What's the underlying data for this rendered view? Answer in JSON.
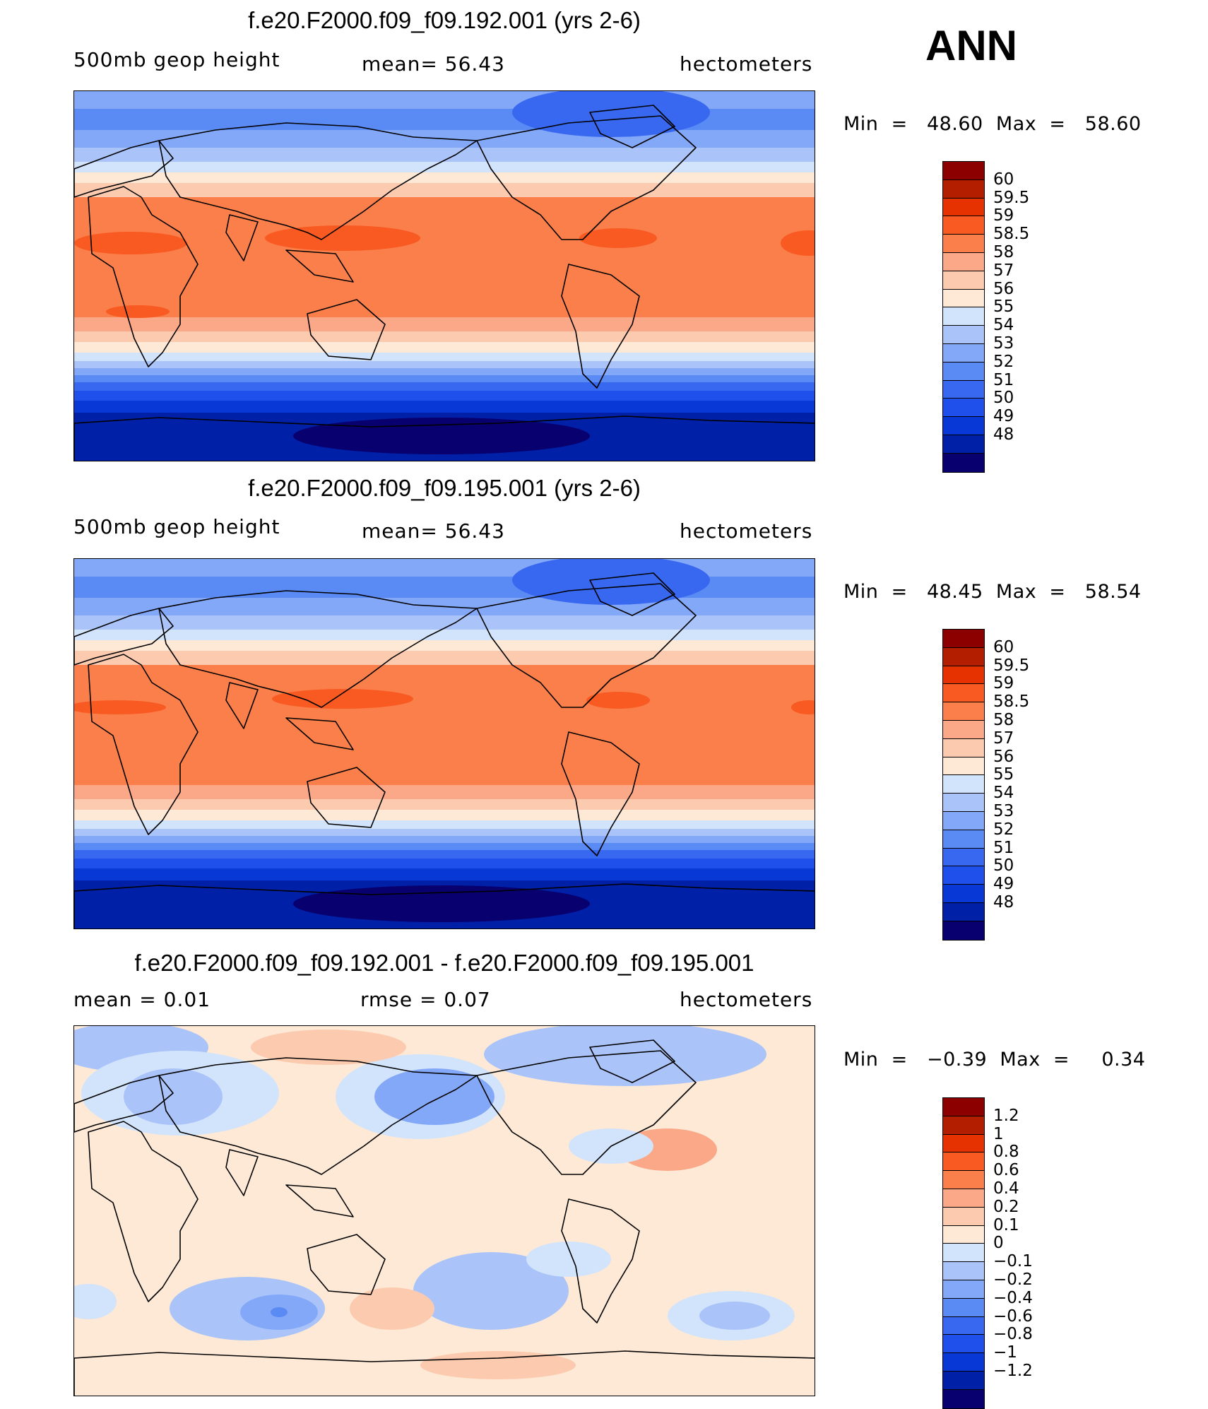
{
  "season": "ANN",
  "colors": {
    "main_scale": [
      "#08006e",
      "#0020a8",
      "#0838d6",
      "#2050ec",
      "#3868f0",
      "#5a8af4",
      "#84a8f8",
      "#aac4fa",
      "#d2e4fc",
      "#fde9d5",
      "#fccaaf",
      "#fba888",
      "#fb7f4a",
      "#f85a22",
      "#e63200",
      "#b41e00",
      "#8c0000"
    ],
    "diff_scale": [
      "#08006e",
      "#0020a8",
      "#0838d6",
      "#2050ec",
      "#3868f0",
      "#5a8af4",
      "#84a8f8",
      "#aac4fa",
      "#d2e4fc",
      "#fde9d5",
      "#fccaaf",
      "#fba888",
      "#fb7f4a",
      "#f85a22",
      "#e63200",
      "#b41e00",
      "#8c0000"
    ]
  },
  "panels": [
    {
      "title": "f.e20.F2000.f09_f09.192.001 (yrs 2-6)",
      "left_label": "500mb  geop  height",
      "center_label": "mean=   56.43",
      "right_label": "hectometers",
      "minmax": "Min  =   48.60  Max  =   58.60",
      "colorbar_labels": [
        "60",
        "59.5",
        "59",
        "58.5",
        "58",
        "57",
        "56",
        "55",
        "54",
        "53",
        "52",
        "51",
        "50",
        "49",
        "48"
      ]
    },
    {
      "title": "f.e20.F2000.f09_f09.195.001 (yrs 2-6)",
      "left_label": "500mb  geop  height",
      "center_label": "mean=   56.43",
      "right_label": "hectometers",
      "minmax": "Min  =   48.45  Max  =   58.54",
      "colorbar_labels": [
        "60",
        "59.5",
        "59",
        "58.5",
        "58",
        "57",
        "56",
        "55",
        "54",
        "53",
        "52",
        "51",
        "50",
        "49",
        "48"
      ]
    },
    {
      "title": "f.e20.F2000.f09_f09.192.001 - f.e20.F2000.f09_f09.195.001",
      "left_label": "mean  =     0.01",
      "center_label": "rmse  =     0.07",
      "right_label": "hectometers",
      "minmax": "Min  =   −0.39  Max  =     0.34",
      "colorbar_labels": [
        "1.2",
        "1",
        "0.8",
        "0.6",
        "0.4",
        "0.2",
        "0.1",
        "0",
        "−0.1",
        "−0.2",
        "−0.4",
        "−0.6",
        "−0.8",
        "−1",
        "−1.2"
      ]
    }
  ],
  "chart_data": [
    {
      "type": "heatmap",
      "title": "f.e20.F2000.f09_f09.192.001 (yrs 2-6)",
      "variable": "500mb geop height",
      "units": "hectometers",
      "mean": 56.43,
      "min": 48.6,
      "max": 58.6,
      "contour_levels": [
        48,
        49,
        50,
        51,
        52,
        53,
        54,
        55,
        56,
        57,
        58,
        58.5,
        59,
        59.5,
        60
      ]
    },
    {
      "type": "heatmap",
      "title": "f.e20.F2000.f09_f09.195.001 (yrs 2-6)",
      "variable": "500mb geop height",
      "units": "hectometers",
      "mean": 56.43,
      "min": 48.45,
      "max": 58.54,
      "contour_levels": [
        48,
        49,
        50,
        51,
        52,
        53,
        54,
        55,
        56,
        57,
        58,
        58.5,
        59,
        59.5,
        60
      ]
    },
    {
      "type": "heatmap",
      "title": "f.e20.F2000.f09_f09.192.001 - f.e20.F2000.f09_f09.195.001",
      "units": "hectometers",
      "mean": 0.01,
      "rmse": 0.07,
      "min": -0.39,
      "max": 0.34,
      "contour_levels": [
        -1.2,
        -1,
        -0.8,
        -0.6,
        -0.4,
        -0.2,
        -0.1,
        0,
        0.1,
        0.2,
        0.4,
        0.6,
        0.8,
        1,
        1.2
      ]
    }
  ]
}
